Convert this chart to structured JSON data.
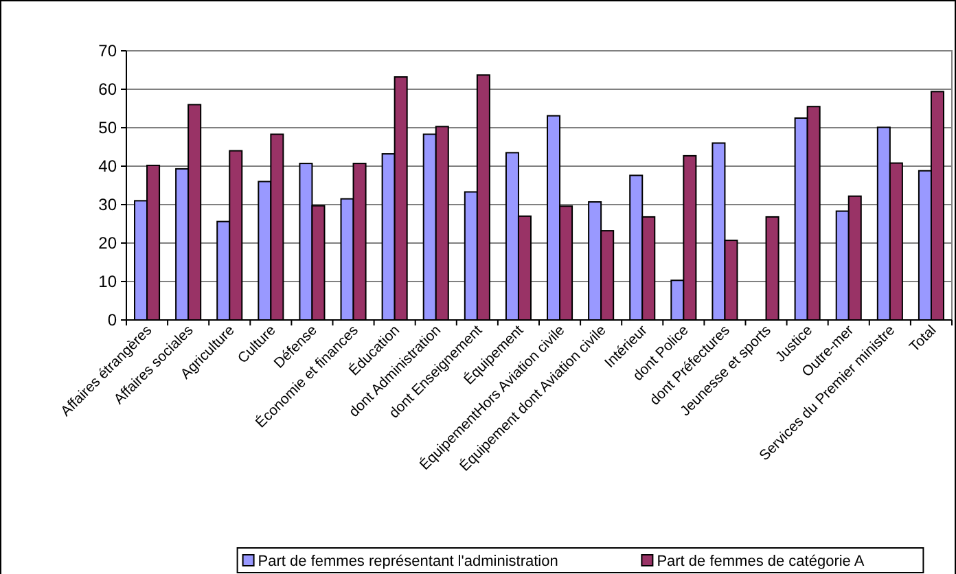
{
  "chart_data": {
    "type": "bar",
    "categories": [
      "Affaires étrangères",
      "Affaires sociales",
      "Agriculture",
      "Culture",
      "Défense",
      "Économie et finances",
      "Éducation",
      "dont Administration",
      "dont Enseignement",
      "Équipement",
      "ÉquipementHors Aviation civile",
      "Équipement dont Aviation civile",
      "Intérieur",
      "dont Police",
      "dont  Préfectures",
      "Jeunesse et sports",
      "Justice",
      "Outre-mer",
      "Services du Premier ministre",
      "Total"
    ],
    "series": [
      {
        "name": "Part de femmes représentant l'administration",
        "color": "#9999ff",
        "values": [
          31,
          39.3,
          25.6,
          36,
          40.7,
          31.5,
          43.2,
          48.3,
          33.3,
          43.5,
          53.1,
          30.7,
          37.6,
          10.3,
          46,
          null,
          52.5,
          28.3,
          50.1,
          38.8
        ]
      },
      {
        "name": "Part de femmes de catégorie  A",
        "color": "#993366",
        "values": [
          40.2,
          56,
          44,
          48.3,
          29.7,
          40.7,
          63.2,
          50.3,
          63.7,
          27,
          29.6,
          23.2,
          26.8,
          42.7,
          20.7,
          26.8,
          55.5,
          32.2,
          40.8,
          59.4
        ]
      }
    ],
    "ylim": [
      0,
      70
    ],
    "yticks": [
      0,
      10,
      20,
      30,
      40,
      50,
      60,
      70
    ],
    "grid": "y",
    "legend": "bottom"
  }
}
